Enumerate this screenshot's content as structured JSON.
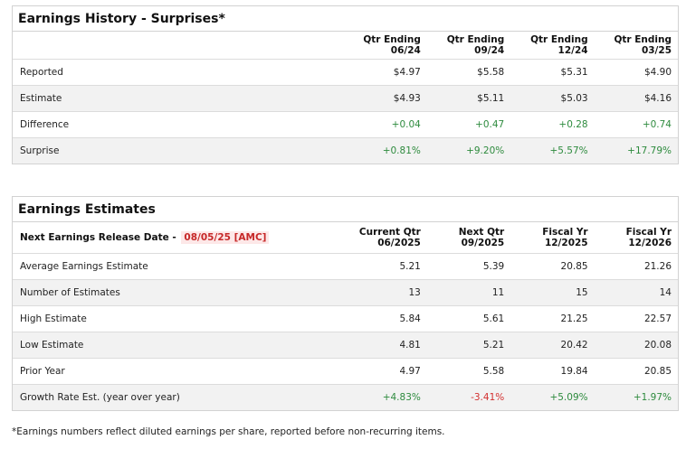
{
  "history": {
    "title": "Earnings History - Surprises*",
    "columns": [
      {
        "line1": "Qtr Ending",
        "line2": "06/24"
      },
      {
        "line1": "Qtr Ending",
        "line2": "09/24"
      },
      {
        "line1": "Qtr Ending",
        "line2": "12/24"
      },
      {
        "line1": "Qtr Ending",
        "line2": "03/25"
      }
    ],
    "rows": [
      {
        "label": "Reported",
        "values": [
          "$4.97",
          "$5.58",
          "$5.31",
          "$4.90"
        ]
      },
      {
        "label": "Estimate",
        "values": [
          "$4.93",
          "$5.11",
          "$5.03",
          "$4.16"
        ]
      },
      {
        "label": "Difference",
        "values": [
          "+0.04",
          "+0.47",
          "+0.28",
          "+0.74"
        ]
      },
      {
        "label": "Surprise",
        "values": [
          "+0.81%",
          "+9.20%",
          "+5.57%",
          "+17.79%"
        ]
      }
    ]
  },
  "estimates": {
    "title": "Earnings Estimates",
    "release_label": "Next Earnings Release Date -",
    "release_date": "08/05/25 [AMC]",
    "columns": [
      {
        "line1": "Current Qtr",
        "line2": "06/2025"
      },
      {
        "line1": "Next Qtr",
        "line2": "09/2025"
      },
      {
        "line1": "Fiscal Yr",
        "line2": "12/2025"
      },
      {
        "line1": "Fiscal Yr",
        "line2": "12/2026"
      }
    ],
    "rows": [
      {
        "label": "Average Earnings Estimate",
        "values": [
          "5.21",
          "5.39",
          "20.85",
          "21.26"
        ]
      },
      {
        "label": "Number of Estimates",
        "values": [
          "13",
          "11",
          "15",
          "14"
        ]
      },
      {
        "label": "High Estimate",
        "values": [
          "5.84",
          "5.61",
          "21.25",
          "22.57"
        ]
      },
      {
        "label": "Low Estimate",
        "values": [
          "4.81",
          "5.21",
          "20.42",
          "20.08"
        ]
      },
      {
        "label": "Prior Year",
        "values": [
          "4.97",
          "5.58",
          "19.84",
          "20.85"
        ]
      },
      {
        "label": "Growth Rate Est. (year over year)",
        "values": [
          "+4.83%",
          "-3.41%",
          "+5.09%",
          "+1.97%"
        ]
      }
    ]
  },
  "colors": {
    "positive": "#2e8b3e",
    "negative": "#d32f2f",
    "badge_bg": "#fde8e8"
  },
  "footnote": "*Earnings numbers reflect diluted earnings per share, reported before non-recurring items."
}
